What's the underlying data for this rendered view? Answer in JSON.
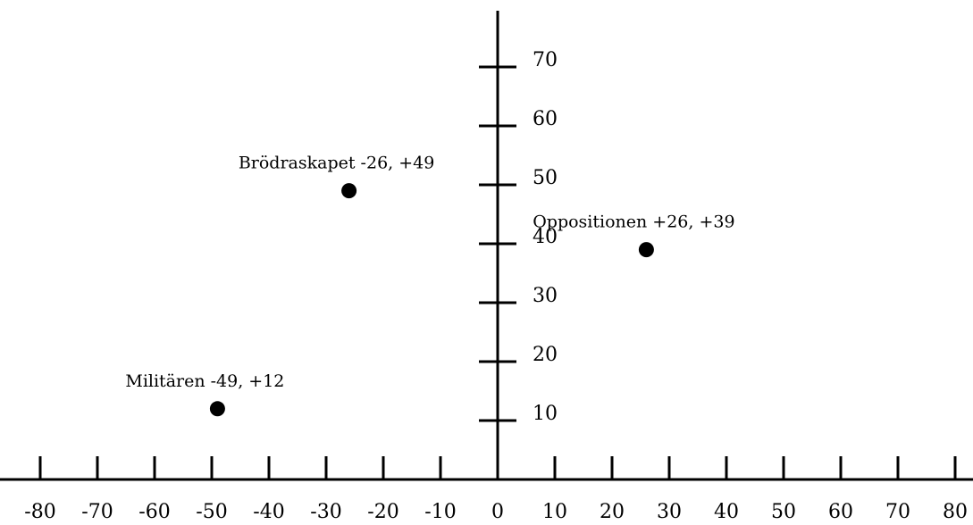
{
  "chart_data": {
    "type": "scatter",
    "title": "",
    "xlabel": "",
    "ylabel": "",
    "xlim": [
      -80,
      80
    ],
    "ylim": [
      0,
      70
    ],
    "x_ticks": [
      -80,
      -70,
      -60,
      -50,
      -40,
      -30,
      -20,
      -10,
      0,
      10,
      20,
      30,
      40,
      50,
      60,
      70,
      80
    ],
    "x_tick_labels": [
      "-80",
      "-70",
      "-60",
      "-50",
      "-40",
      "-30",
      "-20",
      "-10",
      "0",
      "10",
      "20",
      "30",
      "40",
      "50",
      "60",
      "70",
      "80"
    ],
    "y_ticks": [
      10,
      20,
      30,
      40,
      50,
      60,
      70
    ],
    "y_tick_labels": [
      "10",
      "20",
      "30",
      "40",
      "50",
      "60",
      "70"
    ],
    "grid": false,
    "points": [
      {
        "x": -26,
        "y": 49,
        "label": "Brödraskapet -26, +49"
      },
      {
        "x": 26,
        "y": 39,
        "label": "Oppositionen +26, +39"
      },
      {
        "x": -49,
        "y": 12,
        "label": "Militären -49, +12"
      }
    ],
    "colors": {
      "axis": "#000000",
      "point": "#000000",
      "background": "#ffffff"
    }
  }
}
